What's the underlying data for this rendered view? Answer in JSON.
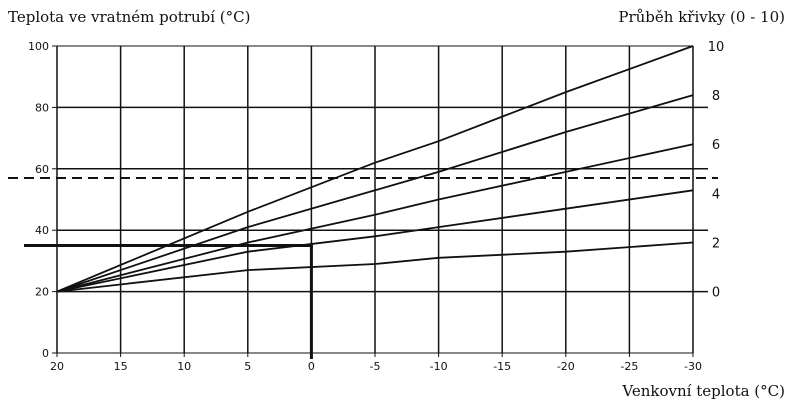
{
  "chart_data": {
    "type": "line",
    "title": "",
    "ylabel": "Teplota ve vratném potrubí (°C)",
    "y2label": "Průběh křivky (0 - 10)",
    "xlabel": "Venkovní teplota (°C)",
    "xlim": [
      20,
      -30
    ],
    "ylim": [
      0,
      100
    ],
    "x_ticks": [
      20,
      15,
      10,
      5,
      0,
      -5,
      -10,
      -15,
      -20,
      -25,
      -30
    ],
    "x_tick_labels": [
      "20",
      "15",
      "10",
      "5",
      "0",
      "-5",
      "-10",
      "-15",
      "-20",
      "-25",
      "-30"
    ],
    "y_ticks": [
      0,
      20,
      40,
      60,
      80,
      100
    ],
    "y_tick_labels": [
      "0",
      "20",
      "40",
      "60",
      "80",
      "100"
    ],
    "right_labels": [
      {
        "label": "10",
        "y": 100
      },
      {
        "label": "8",
        "y": 84
      },
      {
        "label": "6",
        "y": 68
      },
      {
        "label": "4",
        "y": 52
      },
      {
        "label": "2",
        "y": 36
      },
      {
        "label": "0",
        "y": 20
      }
    ],
    "grid": true,
    "series": [
      {
        "x": [
          20,
          5,
          -5,
          -10,
          -20,
          -30
        ],
        "y": [
          20,
          46,
          62,
          69,
          85,
          100
        ]
      },
      {
        "x": [
          20,
          5,
          -5,
          -10,
          -20,
          -30
        ],
        "y": [
          20,
          41,
          53,
          59,
          72,
          84
        ]
      },
      {
        "x": [
          20,
          5,
          -5,
          -10,
          -20,
          -30
        ],
        "y": [
          20,
          36,
          45,
          50,
          59,
          68
        ]
      },
      {
        "x": [
          20,
          5,
          -5,
          -10,
          -20,
          -30
        ],
        "y": [
          20,
          33,
          38,
          41,
          47,
          53
        ]
      },
      {
        "x": [
          20,
          5,
          -5,
          -10,
          -20,
          -30
        ],
        "y": [
          20,
          27,
          29,
          31,
          33,
          36
        ]
      }
    ],
    "reference_lines": {
      "dashed_horizontal_y": 57,
      "solid_horizontal_y": 35,
      "solid_vertical_x": 0
    }
  }
}
